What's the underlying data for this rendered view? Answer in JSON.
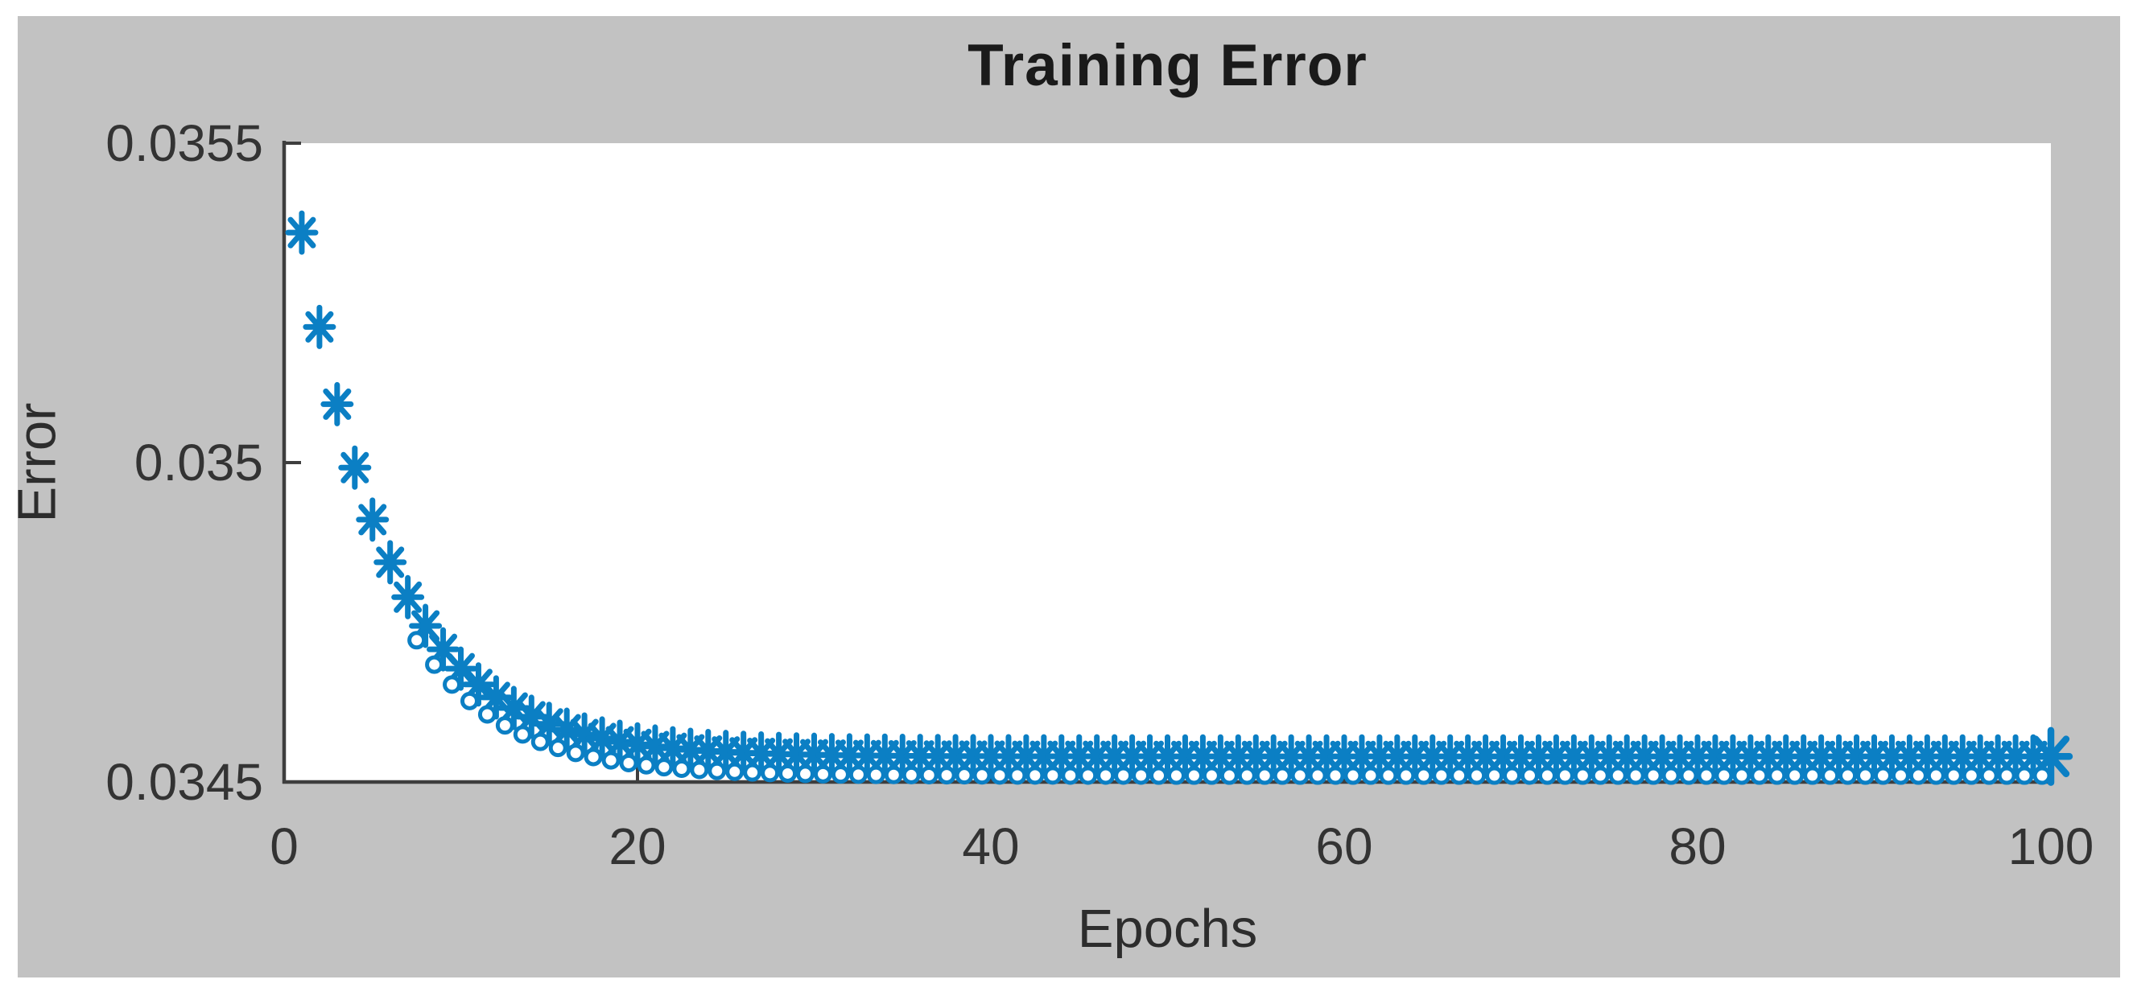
{
  "figure": {
    "background": "#c2c2c2",
    "plot_background": "#ffffff",
    "axis_color": "#3e3e3e",
    "tick_label_color": "#333333",
    "marker_color": "#0b7fc4",
    "title_color": "#1a1a1a"
  },
  "chart_data": {
    "type": "scatter",
    "title": "Training Error",
    "xlabel": "Epochs",
    "ylabel": "Error",
    "xlim": [
      0,
      100
    ],
    "ylim": [
      0.0345,
      0.0355
    ],
    "grid": false,
    "legend": null,
    "xticks": {
      "values": [
        0,
        20,
        40,
        60,
        80,
        100
      ],
      "labels": [
        "0",
        "20",
        "40",
        "60",
        "80",
        "100"
      ]
    },
    "yticks": {
      "values": [
        0.0345,
        0.035,
        0.0355
      ],
      "labels": [
        "0.0345",
        "0.035",
        "0.0355"
      ]
    },
    "series": [
      {
        "name": "training-error-asterisks",
        "marker": "asterisk",
        "x_start_epoch": 1,
        "x_offset": 0,
        "visible_from_index": 1,
        "emphasize_last": true,
        "values": [
          0.03536,
          0.0352124,
          0.0350914,
          0.0349921,
          0.0349107,
          0.034844,
          0.0347893,
          0.0347444,
          0.0347076,
          0.0346774,
          0.0346527,
          0.0346324,
          0.0346158,
          0.0346021,
          0.034591,
          0.0345818,
          0.0345743,
          0.0345681,
          0.034563,
          0.0345589,
          0.0345555,
          0.0345527,
          0.0345504,
          0.0345485,
          0.034547,
          0.0345457,
          0.0345447,
          0.0345439,
          0.0345432,
          0.0345426,
          0.0345421,
          0.0345417,
          0.0345414,
          0.0345412,
          0.034541,
          0.0345408,
          0.0345406,
          0.0345405,
          0.0345404,
          0.0345404,
          0.0345403,
          0.0345402,
          0.0345402,
          0.0345402,
          0.0345401,
          0.0345401,
          0.0345401,
          0.0345401,
          0.0345401,
          0.03454,
          0.03454,
          0.03454,
          0.03454,
          0.03454,
          0.03454,
          0.03454,
          0.03454,
          0.03454,
          0.03454,
          0.03454,
          0.03454,
          0.03454,
          0.03454,
          0.03454,
          0.03454,
          0.03454,
          0.03454,
          0.03454,
          0.03454,
          0.03454,
          0.03454,
          0.03454,
          0.03454,
          0.03454,
          0.03454,
          0.03454,
          0.03454,
          0.03454,
          0.03454,
          0.03454,
          0.03454,
          0.03454,
          0.03454,
          0.03454,
          0.03454,
          0.03454,
          0.03454,
          0.03454,
          0.03454,
          0.03454,
          0.03454,
          0.03454,
          0.03454,
          0.03454,
          0.03454,
          0.03454,
          0.03454,
          0.03454,
          0.03454,
          0.03454
        ]
      },
      {
        "name": "training-error-circles",
        "marker": "circle",
        "x_start_epoch": 1,
        "x_offset": -0.5,
        "visible_from_index": 8,
        "emphasize_last": false,
        "values": [
          0.03536,
          0.035207,
          0.0350815,
          0.0349787,
          0.0348943,
          0.0348251,
          0.0347684,
          0.0347219,
          0.0346838,
          0.0346525,
          0.0346268,
          0.0346058,
          0.0345886,
          0.0345744,
          0.0345628,
          0.0345533,
          0.0345455,
          0.0345391,
          0.0345339,
          0.0345296,
          0.0345261,
          0.0345232,
          0.0345208,
          0.0345189,
          0.0345173,
          0.034516,
          0.0345149,
          0.034514,
          0.0345133,
          0.0345127,
          0.0345122,
          0.0345118,
          0.0345115,
          0.0345112,
          0.034511,
          0.0345108,
          0.0345107,
          0.0345106,
          0.0345105,
          0.0345104,
          0.0345103,
          0.0345102,
          0.0345102,
          0.0345102,
          0.0345101,
          0.0345101,
          0.0345101,
          0.0345101,
          0.0345101,
          0.03451,
          0.03451,
          0.03451,
          0.03451,
          0.03451,
          0.03451,
          0.03451,
          0.03451,
          0.03451,
          0.03451,
          0.03451,
          0.03451,
          0.03451,
          0.03451,
          0.03451,
          0.03451,
          0.03451,
          0.03451,
          0.03451,
          0.03451,
          0.03451,
          0.03451,
          0.03451,
          0.03451,
          0.03451,
          0.03451,
          0.03451,
          0.03451,
          0.03451,
          0.03451,
          0.03451,
          0.03451,
          0.03451,
          0.03451,
          0.03451,
          0.03451,
          0.03451,
          0.03451,
          0.03451,
          0.03451,
          0.03451,
          0.03451,
          0.03451,
          0.03451,
          0.03451,
          0.03451,
          0.03451,
          0.03451,
          0.03451,
          0.03451,
          0.03451
        ]
      }
    ]
  }
}
